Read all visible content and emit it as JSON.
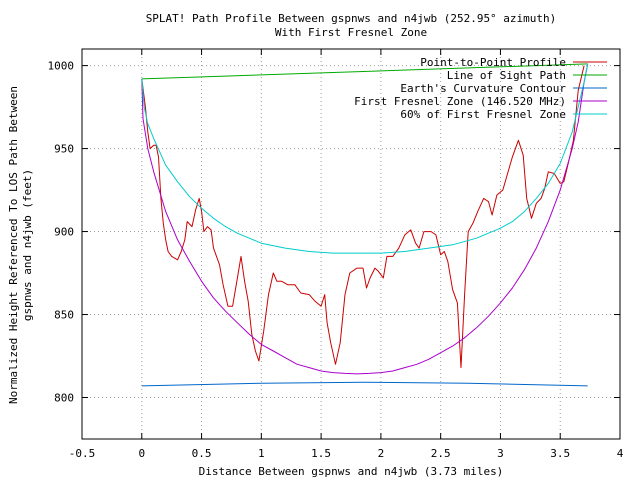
{
  "chart_data": {
    "type": "line",
    "title": "SPLAT! Path Profile Between gspnws and n4jwb (252.95° azimuth)",
    "subtitle": "With First Fresnel Zone",
    "xlabel": "Distance Between gspnws and n4jwb (3.73 miles)",
    "ylabel_line1": "Normalized Height Referenced To LOS Path Between",
    "ylabel_line2": "gspnws and n4jwb (feet)",
    "xlim": [
      -0.5,
      4
    ],
    "ylim": [
      775,
      1010
    ],
    "x_ticks": [
      -0.5,
      0,
      0.5,
      1,
      1.5,
      2,
      2.5,
      3,
      3.5,
      4
    ],
    "x_tick_labels": [
      "-0.5",
      "0",
      "0.5",
      "1",
      "1.5",
      "2",
      "2.5",
      "3",
      "3.5",
      "4"
    ],
    "y_ticks": [
      800,
      850,
      900,
      950,
      1000
    ],
    "y_tick_labels": [
      "800",
      "850",
      "900",
      "950",
      "1000"
    ],
    "grid": true,
    "legend_position": "top-right",
    "series": [
      {
        "name": "Point-to-Point Profile",
        "color": "#cc0000",
        "points": [
          [
            0.0,
            992
          ],
          [
            0.03,
            975
          ],
          [
            0.05,
            960
          ],
          [
            0.07,
            950
          ],
          [
            0.1,
            952
          ],
          [
            0.12,
            952
          ],
          [
            0.14,
            945
          ],
          [
            0.16,
            920
          ],
          [
            0.18,
            905
          ],
          [
            0.2,
            895
          ],
          [
            0.22,
            888
          ],
          [
            0.25,
            885
          ],
          [
            0.3,
            883
          ],
          [
            0.33,
            888
          ],
          [
            0.36,
            895
          ],
          [
            0.38,
            906
          ],
          [
            0.42,
            903
          ],
          [
            0.45,
            913
          ],
          [
            0.48,
            920
          ],
          [
            0.5,
            912
          ],
          [
            0.52,
            900
          ],
          [
            0.55,
            903
          ],
          [
            0.58,
            901
          ],
          [
            0.6,
            890
          ],
          [
            0.65,
            880
          ],
          [
            0.68,
            868
          ],
          [
            0.72,
            855
          ],
          [
            0.76,
            855
          ],
          [
            0.8,
            872
          ],
          [
            0.83,
            885
          ],
          [
            0.86,
            870
          ],
          [
            0.89,
            858
          ],
          [
            0.92,
            838
          ],
          [
            0.95,
            828
          ],
          [
            0.98,
            822
          ],
          [
            1.02,
            840
          ],
          [
            1.06,
            862
          ],
          [
            1.1,
            875
          ],
          [
            1.13,
            870
          ],
          [
            1.17,
            870
          ],
          [
            1.22,
            868
          ],
          [
            1.28,
            868
          ],
          [
            1.33,
            863
          ],
          [
            1.4,
            862
          ],
          [
            1.45,
            858
          ],
          [
            1.5,
            855
          ],
          [
            1.53,
            862
          ],
          [
            1.55,
            845
          ],
          [
            1.58,
            833
          ],
          [
            1.62,
            820
          ],
          [
            1.66,
            833
          ],
          [
            1.7,
            862
          ],
          [
            1.74,
            875
          ],
          [
            1.8,
            878
          ],
          [
            1.85,
            878
          ],
          [
            1.88,
            866
          ],
          [
            1.91,
            872
          ],
          [
            1.95,
            878
          ],
          [
            1.98,
            876
          ],
          [
            2.02,
            872
          ],
          [
            2.05,
            885
          ],
          [
            2.1,
            885
          ],
          [
            2.15,
            890
          ],
          [
            2.2,
            898
          ],
          [
            2.25,
            901
          ],
          [
            2.29,
            893
          ],
          [
            2.32,
            890
          ],
          [
            2.36,
            900
          ],
          [
            2.42,
            900
          ],
          [
            2.46,
            898
          ],
          [
            2.5,
            886
          ],
          [
            2.53,
            888
          ],
          [
            2.56,
            882
          ],
          [
            2.6,
            865
          ],
          [
            2.64,
            857
          ],
          [
            2.67,
            818
          ],
          [
            2.7,
            862
          ],
          [
            2.73,
            900
          ],
          [
            2.77,
            905
          ],
          [
            2.81,
            912
          ],
          [
            2.86,
            920
          ],
          [
            2.9,
            918
          ],
          [
            2.93,
            910
          ],
          [
            2.97,
            922
          ],
          [
            3.02,
            925
          ],
          [
            3.06,
            935
          ],
          [
            3.1,
            945
          ],
          [
            3.15,
            955
          ],
          [
            3.19,
            946
          ],
          [
            3.22,
            920
          ],
          [
            3.26,
            908
          ],
          [
            3.3,
            917
          ],
          [
            3.34,
            920
          ],
          [
            3.37,
            926
          ],
          [
            3.4,
            936
          ],
          [
            3.45,
            935
          ],
          [
            3.5,
            929
          ],
          [
            3.53,
            930
          ],
          [
            3.57,
            942
          ],
          [
            3.61,
            955
          ],
          [
            3.65,
            985
          ],
          [
            3.7,
            1000
          ]
        ]
      },
      {
        "name": "Line of Sight Path",
        "color": "#00aa00",
        "points": [
          [
            0.0,
            992
          ],
          [
            3.73,
            1001
          ]
        ]
      },
      {
        "name": "Earth's Curvature Contour",
        "color": "#0066cc",
        "points": [
          [
            0.0,
            807
          ],
          [
            1.0,
            808.6
          ],
          [
            1.865,
            809.2
          ],
          [
            2.73,
            808.6
          ],
          [
            3.73,
            807
          ]
        ]
      },
      {
        "name": "First Fresnel Zone (146.520 MHz)",
        "color": "#aa00cc",
        "points": [
          [
            0.0,
            992
          ],
          [
            0.01,
            968
          ],
          [
            0.05,
            950
          ],
          [
            0.1,
            936
          ],
          [
            0.2,
            912
          ],
          [
            0.3,
            895
          ],
          [
            0.4,
            882
          ],
          [
            0.5,
            870
          ],
          [
            0.6,
            860
          ],
          [
            0.7,
            852
          ],
          [
            0.8,
            845
          ],
          [
            0.9,
            838
          ],
          [
            1.0,
            832
          ],
          [
            1.1,
            828
          ],
          [
            1.2,
            824
          ],
          [
            1.3,
            820
          ],
          [
            1.4,
            818
          ],
          [
            1.5,
            816
          ],
          [
            1.6,
            815
          ],
          [
            1.7,
            814.5
          ],
          [
            1.8,
            814.2
          ],
          [
            1.9,
            814.5
          ],
          [
            2.0,
            815
          ],
          [
            2.1,
            816
          ],
          [
            2.2,
            818
          ],
          [
            2.3,
            820
          ],
          [
            2.4,
            823
          ],
          [
            2.5,
            827
          ],
          [
            2.6,
            831
          ],
          [
            2.7,
            836
          ],
          [
            2.8,
            842
          ],
          [
            2.9,
            849
          ],
          [
            3.0,
            857
          ],
          [
            3.1,
            866
          ],
          [
            3.2,
            877
          ],
          [
            3.3,
            890
          ],
          [
            3.4,
            906
          ],
          [
            3.5,
            925
          ],
          [
            3.6,
            950
          ],
          [
            3.65,
            966
          ],
          [
            3.7,
            990
          ],
          [
            3.73,
            1001
          ]
        ]
      },
      {
        "name": "60% of First Fresnel Zone",
        "color": "#00cccc",
        "points": [
          [
            0.0,
            992
          ],
          [
            0.02,
            975
          ],
          [
            0.05,
            965
          ],
          [
            0.1,
            956
          ],
          [
            0.2,
            940
          ],
          [
            0.3,
            930
          ],
          [
            0.4,
            921
          ],
          [
            0.5,
            914
          ],
          [
            0.6,
            908
          ],
          [
            0.7,
            903
          ],
          [
            0.8,
            899
          ],
          [
            0.9,
            896
          ],
          [
            1.0,
            893
          ],
          [
            1.2,
            890
          ],
          [
            1.4,
            888
          ],
          [
            1.6,
            887
          ],
          [
            1.8,
            887
          ],
          [
            2.0,
            887
          ],
          [
            2.2,
            888
          ],
          [
            2.4,
            890
          ],
          [
            2.6,
            892
          ],
          [
            2.8,
            896
          ],
          [
            3.0,
            902
          ],
          [
            3.1,
            906
          ],
          [
            3.2,
            912
          ],
          [
            3.3,
            920
          ],
          [
            3.4,
            929
          ],
          [
            3.5,
            941
          ],
          [
            3.6,
            960
          ],
          [
            3.7,
            990
          ],
          [
            3.73,
            1001
          ]
        ]
      }
    ]
  }
}
